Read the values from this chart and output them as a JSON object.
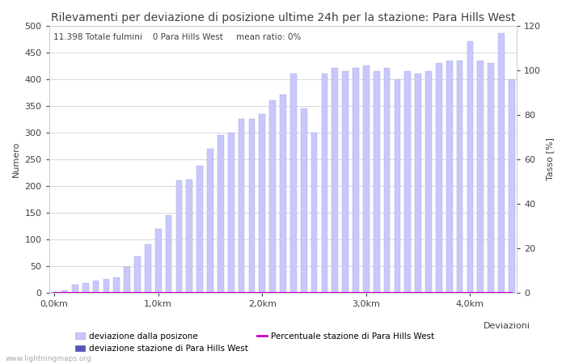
{
  "title": "Rilevamenti per deviazione di posizione ultime 24h per la stazione: Para Hills West",
  "subtitle": "11.398 Totale fulmini    0 Para Hills West     mean ratio: 0%",
  "xlabel": "Deviazioni",
  "ylabel_left": "Numero",
  "ylabel_right": "Tasso [%]",
  "watermark": "www.lightningmaps.org",
  "x_tick_labels": [
    "0,0km",
    "1,0km",
    "2,0km",
    "3,0km",
    "4,0km"
  ],
  "x_tick_positions": [
    0,
    10,
    20,
    30,
    40
  ],
  "ylim_left": [
    0,
    500
  ],
  "ylim_right": [
    0,
    120
  ],
  "yticks_left": [
    0,
    50,
    100,
    150,
    200,
    250,
    300,
    350,
    400,
    450,
    500
  ],
  "yticks_right": [
    0,
    20,
    40,
    60,
    80,
    100,
    120
  ],
  "bar_values": [
    2,
    5,
    15,
    18,
    22,
    25,
    28,
    48,
    68,
    90,
    120,
    145,
    210,
    212,
    237,
    270,
    295,
    300,
    325,
    325,
    335,
    360,
    370,
    410,
    345,
    300,
    410,
    420,
    415,
    420,
    425,
    415,
    420,
    400,
    415,
    410,
    415,
    430,
    435,
    435,
    470,
    435,
    430,
    485,
    400
  ],
  "bar_color": "#c8c8ff",
  "bar_edge_color": "#a8a8d8",
  "station_bar_values": [
    0,
    0,
    0,
    0,
    0,
    0,
    0,
    0,
    0,
    0,
    0,
    0,
    0,
    0,
    0,
    0,
    0,
    0,
    0,
    0,
    0,
    0,
    0,
    0,
    0,
    0,
    0,
    0,
    0,
    0,
    0,
    0,
    0,
    0,
    0,
    0,
    0,
    0,
    0,
    0,
    0,
    0,
    0,
    0,
    0
  ],
  "station_bar_color": "#5555bb",
  "percentage_values": [
    0,
    0,
    0,
    0,
    0,
    0,
    0,
    0,
    0,
    0,
    0,
    0,
    0,
    0,
    0,
    0,
    0,
    0,
    0,
    0,
    0,
    0,
    0,
    0,
    0,
    0,
    0,
    0,
    0,
    0,
    0,
    0,
    0,
    0,
    0,
    0,
    0,
    0,
    0,
    0,
    0,
    0,
    0,
    0,
    0
  ],
  "percentage_color": "#cc00cc",
  "legend_items": [
    {
      "label": "deviazione dalla posizone",
      "color": "#c8c8ff",
      "edge": "#a8a8d8",
      "type": "bar"
    },
    {
      "label": "deviazione stazione di Para Hills West",
      "color": "#5555bb",
      "edge": "#5555bb",
      "type": "bar"
    },
    {
      "label": "Percentuale stazione di Para Hills West",
      "color": "#cc00cc",
      "type": "line"
    }
  ],
  "background_color": "#ffffff",
  "grid_color": "#c8c8c8",
  "font_color": "#404040",
  "title_fontsize": 10,
  "axis_fontsize": 8,
  "tick_fontsize": 8,
  "subtitle_fontsize": 7.5
}
